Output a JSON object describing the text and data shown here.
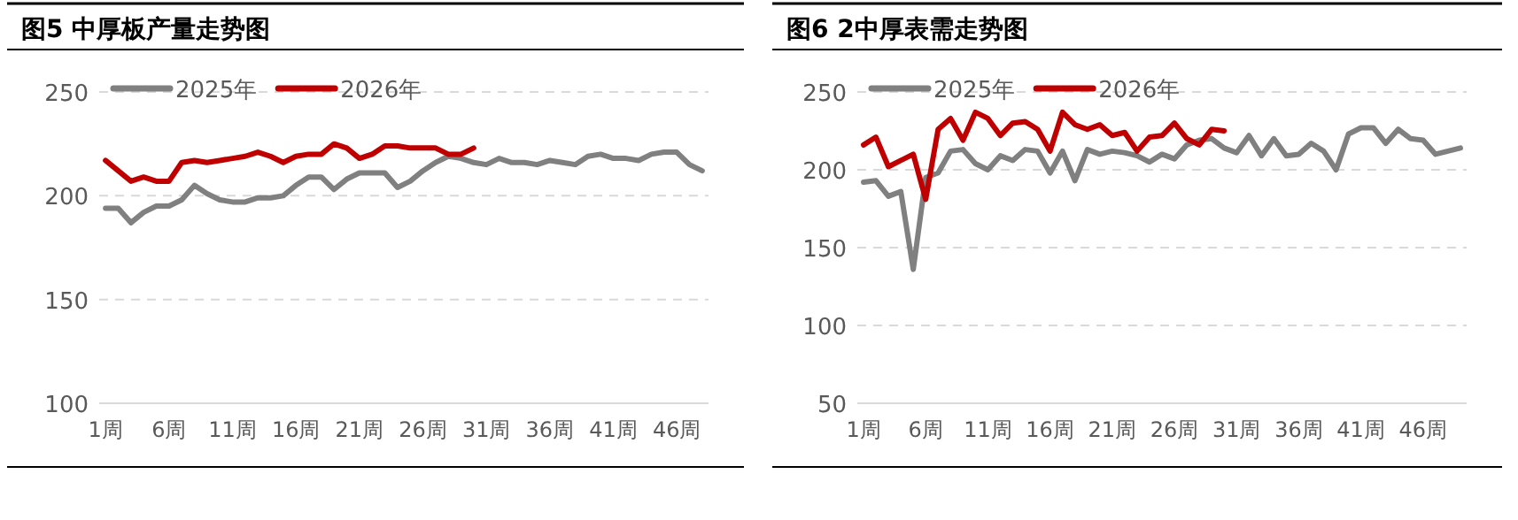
{
  "chart_data": [
    {
      "type": "line",
      "title": "图5 中厚板产量走势图",
      "categories": [
        "1周",
        null,
        null,
        null,
        null,
        "6周",
        null,
        null,
        null,
        null,
        "11周",
        null,
        null,
        null,
        null,
        "16周",
        null,
        null,
        null,
        null,
        "21周",
        null,
        null,
        null,
        null,
        "26周",
        null,
        null,
        null,
        null,
        "31周",
        null,
        null,
        null,
        null,
        "36周",
        null,
        null,
        null,
        null,
        "41周",
        null,
        null,
        null,
        null,
        "46周",
        null,
        null
      ],
      "ylim": [
        100,
        250
      ],
      "yticks": [
        100,
        150,
        200,
        250
      ],
      "grid": "y",
      "legend": "top left",
      "marker": "none",
      "line_style": "solid",
      "series": [
        {
          "name": "2025年",
          "color": "#808080",
          "values": [
            194,
            194,
            187,
            192,
            195,
            195,
            198,
            205,
            201,
            198,
            197,
            197,
            199,
            199,
            200,
            205,
            209,
            209,
            203,
            208,
            211,
            211,
            211,
            204,
            207,
            212,
            216,
            219,
            218,
            216,
            215,
            218,
            216,
            216,
            215,
            217,
            216,
            215,
            219,
            220,
            218,
            218,
            217,
            220,
            221,
            221,
            215,
            212
          ]
        },
        {
          "name": "2026年",
          "color": "#c00000",
          "values": [
            217,
            212,
            207,
            209,
            207,
            207,
            216,
            217,
            216,
            217,
            218,
            219,
            221,
            219,
            216,
            219,
            220,
            220,
            225,
            223,
            218,
            220,
            224,
            224,
            223,
            223,
            223,
            220,
            220,
            223,
            null,
            null,
            null,
            null,
            null,
            null,
            null,
            null,
            null,
            null,
            null,
            null,
            null,
            null,
            null,
            null,
            null,
            null
          ]
        }
      ]
    },
    {
      "type": "line",
      "title": "图6 2中厚表需走势图",
      "categories": [
        "1周",
        null,
        null,
        null,
        null,
        "6周",
        null,
        null,
        null,
        null,
        "11周",
        null,
        null,
        null,
        null,
        "16周",
        null,
        null,
        null,
        null,
        "21周",
        null,
        null,
        null,
        null,
        "26周",
        null,
        null,
        null,
        null,
        "31周",
        null,
        null,
        null,
        null,
        "36周",
        null,
        null,
        null,
        null,
        "41周",
        null,
        null,
        null,
        null,
        "46周",
        null,
        null,
        null
      ],
      "ylim": [
        50,
        250
      ],
      "yticks": [
        50,
        100,
        150,
        200,
        250
      ],
      "grid": "y",
      "legend": "top left",
      "marker": "none",
      "line_style": "solid",
      "series": [
        {
          "name": "2025年",
          "color": "#808080",
          "values": [
            192,
            193,
            183,
            186,
            136,
            195,
            198,
            212,
            213,
            204,
            200,
            209,
            206,
            213,
            212,
            198,
            212,
            193,
            213,
            210,
            212,
            211,
            209,
            205,
            210,
            207,
            216,
            219,
            220,
            214,
            211,
            222,
            209,
            220,
            209,
            210,
            217,
            212,
            200,
            223,
            227,
            227,
            217,
            226,
            220,
            219,
            210,
            212,
            214
          ]
        },
        {
          "name": "2026年",
          "color": "#c00000",
          "values": [
            216,
            221,
            202,
            206,
            210,
            181,
            226,
            233,
            219,
            237,
            233,
            222,
            230,
            231,
            226,
            212,
            237,
            229,
            226,
            229,
            222,
            224,
            212,
            221,
            222,
            230,
            220,
            216,
            226,
            225,
            null,
            null,
            null,
            null,
            null,
            null,
            null,
            null,
            null,
            null,
            null,
            null,
            null,
            null,
            null,
            null,
            null,
            null,
            null
          ]
        }
      ]
    }
  ]
}
